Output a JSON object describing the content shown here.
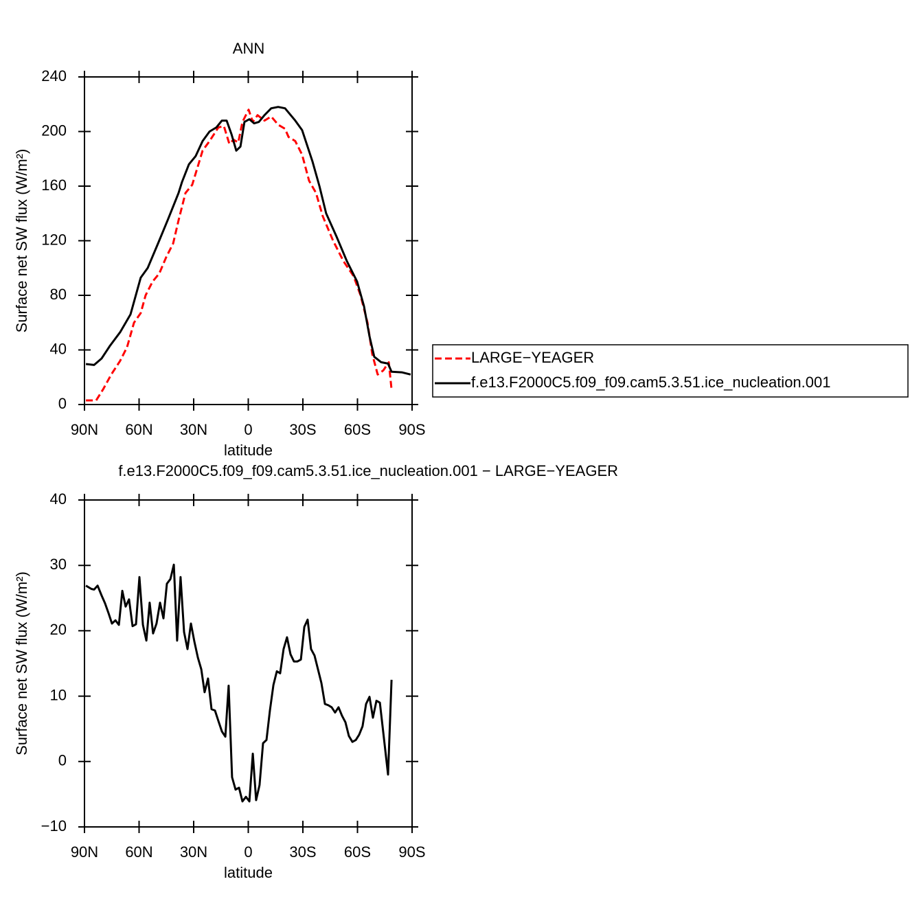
{
  "chart_data": [
    {
      "type": "line",
      "title": "ANN",
      "x_label": "latitude",
      "y_label": "Surface net SW flux (W/m²)",
      "xlim": [
        90,
        -90
      ],
      "xticks": [
        {
          "value": 90,
          "label": "90N"
        },
        {
          "value": 60,
          "label": "60N"
        },
        {
          "value": 30,
          "label": "30N"
        },
        0,
        {
          "value": -30,
          "label": "30S"
        },
        {
          "value": -60,
          "label": "60S"
        },
        {
          "value": -90,
          "label": "90S"
        }
      ],
      "ylim": [
        0,
        240
      ],
      "yticks": [
        0,
        40,
        80,
        120,
        160,
        200,
        240
      ],
      "legend": "right",
      "series": [
        {
          "name": "LARGE−YEAGER",
          "color": "#ff0000",
          "style": "dashed",
          "x": [
            89.2,
            83.6,
            79.8,
            75.3,
            70.4,
            66.6,
            62.8,
            59.1,
            56.4,
            52.6,
            48.9,
            45.1,
            41.3,
            38.3,
            34.5,
            30.8,
            25.1,
            21.3,
            16.4,
            13.4,
            10.4,
            8.1,
            5.5,
            3.2,
            -0.2,
            -2.5,
            -5.1,
            -8.9,
            -12.6,
            -16.4,
            -20.2,
            -22.1,
            -25.8,
            -29.6,
            -33.4,
            -37.2,
            -40.9,
            -46.6,
            -52.3,
            -57.9,
            -61.7,
            -65.5,
            -68.1,
            -71.1,
            -74.2,
            -77.2,
            -78.7
          ],
          "values": [
            3,
            3,
            11,
            22,
            32,
            42,
            60,
            67,
            80,
            90,
            96,
            108,
            118,
            135,
            155,
            161,
            186,
            193,
            203,
            204,
            191,
            194,
            192,
            207,
            216,
            207,
            212,
            208,
            211,
            205,
            202,
            196,
            193,
            183,
            164,
            155,
            138,
            120,
            105,
            94,
            80,
            60,
            37,
            22,
            25,
            31,
            11
          ]
        },
        {
          "name": "f.e13.F2000C5.f09_f09.cam5.3.51.ice_nucleation.001",
          "color": "#000000",
          "style": "solid",
          "x": [
            89.2,
            84.7,
            80.6,
            76.0,
            70.4,
            64.7,
            59.1,
            55.3,
            49.6,
            44.0,
            38.3,
            36.4,
            32.6,
            28.9,
            25.1,
            21.3,
            17.5,
            14.5,
            11.9,
            9.2,
            6.6,
            4.3,
            2.1,
            -0.6,
            -3.2,
            -5.8,
            -8.9,
            -12.6,
            -16.4,
            -20.2,
            -25.8,
            -29.6,
            -35.3,
            -39.1,
            -42.8,
            -48.5,
            -54.2,
            -59.8,
            -63.6,
            -66.6,
            -69.2,
            -73.0,
            -76.8,
            -78.7,
            -84.3,
            -89.2
          ],
          "values": [
            29.7,
            29,
            33.7,
            43,
            53,
            66,
            93,
            100,
            118,
            136,
            155,
            163,
            176,
            182,
            193,
            200,
            203,
            208,
            208,
            198,
            186,
            189,
            207,
            209,
            206,
            207,
            212,
            217,
            218,
            217,
            208,
            201,
            178,
            160,
            140,
            123,
            105,
            90,
            72,
            50,
            35,
            31,
            30,
            24,
            23.6,
            22
          ]
        }
      ]
    },
    {
      "type": "line",
      "title": "f.e13.F2000C5.f09_f09.cam5.3.51.ice_nucleation.001 − LARGE−YEAGER",
      "x_label": "latitude",
      "y_label": "Surface net SW flux (W/m²)",
      "xlim": [
        90,
        -90
      ],
      "xticks": [
        {
          "value": 90,
          "label": "90N"
        },
        {
          "value": 60,
          "label": "60N"
        },
        {
          "value": 30,
          "label": "30N"
        },
        0,
        {
          "value": -30,
          "label": "30S"
        },
        {
          "value": -60,
          "label": "60S"
        },
        {
          "value": -90,
          "label": "90S"
        }
      ],
      "ylim": [
        -10,
        40
      ],
      "yticks": [
        {
          "value": -10,
          "label": "−10"
        },
        0,
        10,
        20,
        30,
        40
      ],
      "series": [
        {
          "color": "#000000",
          "style": "solid",
          "x": [
            89.2,
            86.2,
            84.7,
            82.8,
            80.6,
            78.7,
            76.8,
            74.9,
            73.0,
            71.1,
            69.2,
            67.4,
            65.5,
            63.6,
            61.7,
            59.8,
            57.9,
            56.0,
            54.2,
            52.3,
            50.4,
            48.5,
            46.6,
            44.7,
            42.8,
            40.9,
            39.1,
            37.2,
            35.3,
            33.4,
            31.5,
            29.6,
            27.7,
            25.8,
            24.0,
            22.1,
            20.2,
            18.3,
            16.4,
            14.5,
            12.6,
            10.8,
            8.9,
            7.0,
            5.1,
            3.2,
            1.3,
            -0.6,
            -2.5,
            -4.3,
            -6.2,
            -8.1,
            -10.0,
            -11.9,
            -13.8,
            -15.7,
            -17.5,
            -19.4,
            -21.3,
            -23.2,
            -25.1,
            -27.0,
            -28.9,
            -30.8,
            -32.6,
            -34.5,
            -36.4,
            -38.3,
            -40.2,
            -42.1,
            -44.0,
            -45.8,
            -47.7,
            -49.6,
            -51.5,
            -53.4,
            -55.3,
            -57.2,
            -59.1,
            -60.9,
            -62.8,
            -64.7,
            -66.6,
            -68.5,
            -70.4,
            -72.3,
            -74.2,
            -76.8,
            -78.7
          ],
          "values": [
            26.9,
            26.4,
            26.3,
            26.9,
            25.4,
            24.2,
            22.7,
            21.1,
            21.6,
            20.9,
            26.1,
            23.7,
            24.8,
            20.7,
            21,
            28.2,
            20.9,
            18.5,
            24.3,
            19.6,
            21.1,
            24.3,
            21.9,
            27.2,
            27.9,
            30.1,
            18.5,
            28.2,
            19.8,
            17.2,
            21.1,
            18.3,
            15.9,
            14.1,
            10.6,
            12.7,
            8.0,
            7.8,
            6.2,
            4.6,
            3.8,
            11.6,
            -2.4,
            -4.3,
            -4.0,
            -6.1,
            -5.4,
            -6.1,
            1.2,
            -5.9,
            -3.6,
            2.8,
            3.3,
            7.8,
            11.7,
            13.8,
            13.5,
            17.2,
            19,
            16.4,
            15.3,
            15.3,
            15.6,
            20.6,
            21.7,
            17.2,
            16.2,
            14.1,
            12,
            8.8,
            8.6,
            8.3,
            7.5,
            8.3,
            7.0,
            6.0,
            3.9,
            3.0,
            3.3,
            4.1,
            5.4,
            8.8,
            9.9,
            6.7,
            9.3,
            9.0,
            4.4,
            -2.0,
            12.5
          ]
        }
      ]
    }
  ]
}
